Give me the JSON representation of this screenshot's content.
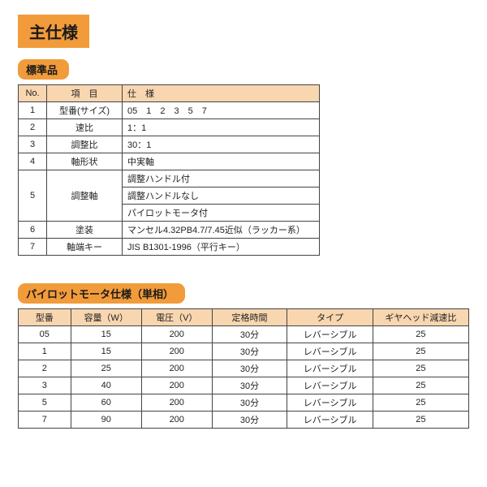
{
  "mainTitle": "主仕様",
  "section1": {
    "title": "標準品",
    "headers": {
      "no": "No.",
      "item": "項　目",
      "spec": "仕　様"
    },
    "rows": [
      {
        "no": "1",
        "item": "型番(サイズ)",
        "spec": "05　1　2　3　5　7"
      },
      {
        "no": "2",
        "item": "速比",
        "spec": "1：1"
      },
      {
        "no": "3",
        "item": "調整比",
        "spec": "30：1"
      },
      {
        "no": "4",
        "item": "軸形状",
        "spec": "中実軸"
      },
      {
        "no": "6",
        "item": "塗装",
        "spec": "マンセル4.32PB4.7/7.45近似（ラッカー系）"
      },
      {
        "no": "7",
        "item": "軸端キー",
        "spec": "JIS B1301-1996（平行キー）"
      }
    ],
    "row5": {
      "no": "5",
      "item": "調整軸",
      "specs": [
        "調整ハンドル付",
        "調整ハンドルなし",
        "パイロットモータ付"
      ]
    }
  },
  "section2": {
    "title": "パイロットモータ仕様（単相）",
    "headers": {
      "model": "型番",
      "cap": "容量（W）",
      "volt": "電圧（V）",
      "time": "定格時間",
      "type": "タイプ",
      "gear": "ギヤヘッド減速比"
    },
    "rows": [
      {
        "model": "05",
        "cap": "15",
        "volt": "200",
        "time": "30分",
        "type": "レバーシブル",
        "gear": "25"
      },
      {
        "model": "1",
        "cap": "15",
        "volt": "200",
        "time": "30分",
        "type": "レバーシブル",
        "gear": "25"
      },
      {
        "model": "2",
        "cap": "25",
        "volt": "200",
        "time": "30分",
        "type": "レバーシブル",
        "gear": "25"
      },
      {
        "model": "3",
        "cap": "40",
        "volt": "200",
        "time": "30分",
        "type": "レバーシブル",
        "gear": "25"
      },
      {
        "model": "5",
        "cap": "60",
        "volt": "200",
        "time": "30分",
        "type": "レバーシブル",
        "gear": "25"
      },
      {
        "model": "7",
        "cap": "90",
        "volt": "200",
        "time": "30分",
        "type": "レバーシブル",
        "gear": "25"
      }
    ]
  }
}
